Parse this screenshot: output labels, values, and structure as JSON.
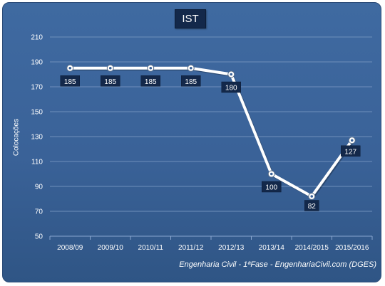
{
  "chart_data": {
    "type": "line",
    "title": "IST",
    "ylabel": "Colocações",
    "xlabel": "",
    "categories": [
      "2008/09",
      "2009/10",
      "2010/11",
      "2011/12",
      "2012/13",
      "2013/14",
      "2014/2015",
      "2015/2016"
    ],
    "values": [
      185,
      185,
      185,
      185,
      180,
      100,
      82,
      127
    ],
    "ylim": [
      50,
      210
    ],
    "yticks": [
      50,
      70,
      90,
      110,
      130,
      150,
      170,
      190,
      210
    ],
    "grid": true,
    "legend": "none",
    "colors": {
      "background": "#3a6298",
      "line": "#ffffff",
      "label_box": "#13284a",
      "grid": "#6f8fbb"
    }
  },
  "footer": "Engenharia Civil - 1ªFase - EngenhariaCivil.com (DGES)"
}
